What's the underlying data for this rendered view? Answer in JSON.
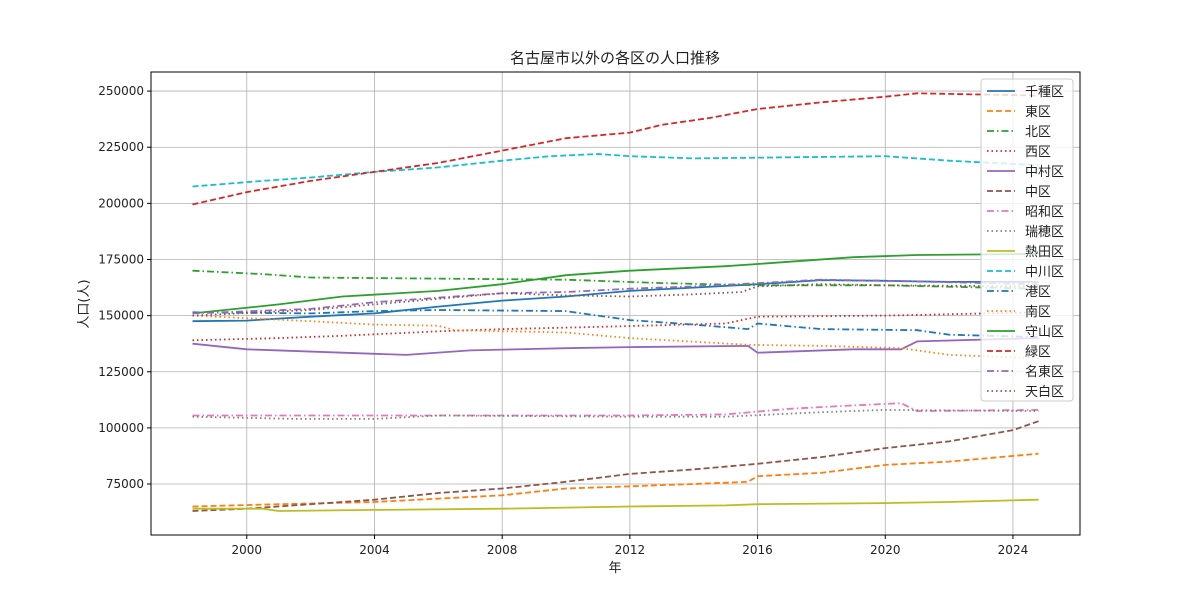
{
  "chart_data": {
    "type": "line",
    "title": "名古屋市以外の各区の人口推移",
    "xlabel": "年",
    "ylabel": "人口(人)",
    "xlim": [
      1997,
      2026.1
    ],
    "ylim": [
      52300,
      258500
    ],
    "xticks": [
      2000,
      2004,
      2008,
      2012,
      2016,
      2020,
      2024
    ],
    "yticks": [
      75000,
      100000,
      125000,
      150000,
      175000,
      200000,
      225000,
      250000
    ],
    "grid": true,
    "legend": "top-right",
    "series": [
      {
        "name": "千種区",
        "color": "#1f77b4",
        "dash": "solid",
        "points": [
          [
            1998.3,
            147500
          ],
          [
            2000,
            147800
          ],
          [
            2002,
            149500
          ],
          [
            2004,
            151000
          ],
          [
            2006,
            154000
          ],
          [
            2008,
            156700
          ],
          [
            2010,
            158500
          ],
          [
            2012,
            161000
          ],
          [
            2014,
            162500
          ],
          [
            2016,
            164000
          ],
          [
            2018,
            165800
          ],
          [
            2020,
            165500
          ],
          [
            2022,
            165000
          ],
          [
            2024.8,
            165000
          ]
        ]
      },
      {
        "name": "東区",
        "color": "#ff7f0e",
        "dash": "dashed",
        "points": [
          [
            1998.3,
            65000
          ],
          [
            2001,
            66000
          ],
          [
            2004,
            67000
          ],
          [
            2008,
            70000
          ],
          [
            2010,
            73000
          ],
          [
            2012,
            74000
          ],
          [
            2014,
            75000
          ],
          [
            2015.7,
            76000
          ],
          [
            2016,
            78500
          ],
          [
            2018,
            80000
          ],
          [
            2020,
            83500
          ],
          [
            2022,
            85000
          ],
          [
            2024.8,
            88500
          ]
        ]
      },
      {
        "name": "北区",
        "color": "#2ca02c",
        "dash": "dashdot",
        "points": [
          [
            1998.3,
            170000
          ],
          [
            2000.5,
            168500
          ],
          [
            2002,
            167000
          ],
          [
            2006,
            166500
          ],
          [
            2010,
            166000
          ],
          [
            2013,
            164500
          ],
          [
            2016,
            163500
          ],
          [
            2020,
            163500
          ],
          [
            2024.8,
            162000
          ]
        ]
      },
      {
        "name": "西区",
        "color": "#d62728",
        "dash": "dotted",
        "points": [
          [
            1998.3,
            139000
          ],
          [
            2001,
            140000
          ],
          [
            2003,
            141000
          ],
          [
            2006,
            143000
          ],
          [
            2008,
            144000
          ],
          [
            2011,
            145000
          ],
          [
            2015,
            146500
          ],
          [
            2016,
            149500
          ],
          [
            2020,
            150000
          ],
          [
            2024.8,
            151500
          ]
        ]
      },
      {
        "name": "中村区",
        "color": "#9467bd",
        "dash": "solid",
        "points": [
          [
            1998.3,
            137500
          ],
          [
            2000,
            135000
          ],
          [
            2003,
            133500
          ],
          [
            2005,
            132500
          ],
          [
            2007,
            134500
          ],
          [
            2010,
            135500
          ],
          [
            2012,
            136000
          ],
          [
            2015.7,
            136500
          ],
          [
            2016,
            133500
          ],
          [
            2019,
            135000
          ],
          [
            2020.5,
            135000
          ],
          [
            2021,
            138500
          ],
          [
            2024.8,
            140000
          ]
        ]
      },
      {
        "name": "中区",
        "color": "#8c564b",
        "dash": "dashed",
        "points": [
          [
            1998.3,
            63000
          ],
          [
            2000,
            64000
          ],
          [
            2002,
            66000
          ],
          [
            2004,
            68000
          ],
          [
            2006,
            71000
          ],
          [
            2008,
            73000
          ],
          [
            2010,
            76000
          ],
          [
            2012,
            79500
          ],
          [
            2014,
            81500
          ],
          [
            2016,
            84000
          ],
          [
            2018,
            87000
          ],
          [
            2020,
            91000
          ],
          [
            2022,
            94000
          ],
          [
            2024,
            99000
          ],
          [
            2024.8,
            103000
          ]
        ]
      },
      {
        "name": "昭和区",
        "color": "#e377c2",
        "dash": "dashdot",
        "points": [
          [
            1998.3,
            105500
          ],
          [
            2004,
            105500
          ],
          [
            2012,
            105500
          ],
          [
            2015,
            106000
          ],
          [
            2017,
            108500
          ],
          [
            2019,
            110000
          ],
          [
            2020.5,
            111000
          ],
          [
            2021,
            107500
          ],
          [
            2024.8,
            108000
          ]
        ]
      },
      {
        "name": "瑞穂区",
        "color": "#7f7f7f",
        "dash": "dotted",
        "points": [
          [
            1998.3,
            105000
          ],
          [
            2001.5,
            104000
          ],
          [
            2004,
            104000
          ],
          [
            2006,
            105500
          ],
          [
            2012,
            105000
          ],
          [
            2015,
            105000
          ],
          [
            2018,
            107000
          ],
          [
            2020,
            108000
          ],
          [
            2024.8,
            107500
          ]
        ]
      },
      {
        "name": "熱田区",
        "color": "#bcbd22",
        "dash": "solid",
        "points": [
          [
            1998.3,
            64000
          ],
          [
            2000.5,
            64000
          ],
          [
            2001,
            63000
          ],
          [
            2004,
            63500
          ],
          [
            2008,
            64000
          ],
          [
            2010,
            64500
          ],
          [
            2012,
            65000
          ],
          [
            2015,
            65500
          ],
          [
            2016,
            66000
          ],
          [
            2020,
            66500
          ],
          [
            2022,
            67000
          ],
          [
            2024.8,
            68000
          ]
        ]
      },
      {
        "name": "中川区",
        "color": "#17becf",
        "dash": "dashed",
        "points": [
          [
            1998.3,
            207500
          ],
          [
            2000.5,
            210000
          ],
          [
            2002,
            211500
          ],
          [
            2004,
            214000
          ],
          [
            2006,
            216000
          ],
          [
            2008,
            219000
          ],
          [
            2009.5,
            221000
          ],
          [
            2011,
            222000
          ],
          [
            2012,
            221000
          ],
          [
            2014,
            220000
          ],
          [
            2017,
            220500
          ],
          [
            2020,
            221000
          ],
          [
            2022,
            219000
          ],
          [
            2024.8,
            217000
          ]
        ]
      },
      {
        "name": "港区",
        "color": "#1f77b4",
        "dash": "dashdot",
        "points": [
          [
            1998.3,
            151500
          ],
          [
            2002,
            151000
          ],
          [
            2004,
            152000
          ],
          [
            2006,
            152500
          ],
          [
            2010,
            152000
          ],
          [
            2010.5,
            151000
          ],
          [
            2012,
            148000
          ],
          [
            2014,
            146000
          ],
          [
            2015.7,
            144000
          ],
          [
            2016,
            146500
          ],
          [
            2018,
            144000
          ],
          [
            2021,
            143500
          ],
          [
            2022,
            141500
          ],
          [
            2024.8,
            140500
          ]
        ]
      },
      {
        "name": "南区",
        "color": "#ff7f0e",
        "dash": "dotted",
        "points": [
          [
            1998.3,
            150000
          ],
          [
            2002,
            147500
          ],
          [
            2004,
            146000
          ],
          [
            2006,
            145500
          ],
          [
            2006.5,
            143500
          ],
          [
            2010,
            142500
          ],
          [
            2012,
            140000
          ],
          [
            2015.7,
            137000
          ],
          [
            2018,
            136500
          ],
          [
            2020.5,
            135500
          ],
          [
            2022,
            132500
          ],
          [
            2024.8,
            131000
          ]
        ]
      },
      {
        "name": "守山区",
        "color": "#2ca02c",
        "dash": "solid",
        "points": [
          [
            1998.3,
            151000
          ],
          [
            2001,
            155000
          ],
          [
            2003,
            158500
          ],
          [
            2006,
            161000
          ],
          [
            2008,
            164000
          ],
          [
            2010,
            168000
          ],
          [
            2012,
            170000
          ],
          [
            2015,
            172000
          ],
          [
            2016,
            173000
          ],
          [
            2019,
            176000
          ],
          [
            2021,
            177000
          ],
          [
            2024.8,
            177500
          ]
        ]
      },
      {
        "name": "緑区",
        "color": "#d62728",
        "dash": "dashed",
        "points": [
          [
            1998.3,
            199500
          ],
          [
            2000,
            205000
          ],
          [
            2002,
            210000
          ],
          [
            2004,
            214000
          ],
          [
            2006,
            218000
          ],
          [
            2008,
            223500
          ],
          [
            2010,
            229000
          ],
          [
            2012,
            231500
          ],
          [
            2013,
            235000
          ],
          [
            2014.5,
            238000
          ],
          [
            2016,
            242000
          ],
          [
            2018,
            245000
          ],
          [
            2020,
            247500
          ],
          [
            2021,
            249000
          ],
          [
            2024.8,
            248000
          ]
        ]
      },
      {
        "name": "名東区",
        "color": "#9467bd",
        "dash": "dashdot",
        "points": [
          [
            1998.3,
            151000
          ],
          [
            2002,
            153000
          ],
          [
            2004,
            156000
          ],
          [
            2006,
            158000
          ],
          [
            2008,
            160000
          ],
          [
            2010,
            160500
          ],
          [
            2012,
            162000
          ],
          [
            2014,
            163000
          ],
          [
            2016,
            164500
          ],
          [
            2018,
            166000
          ],
          [
            2020,
            165500
          ],
          [
            2024.8,
            164000
          ]
        ]
      },
      {
        "name": "天白区",
        "color": "#8c564b",
        "dash": "dotted",
        "points": [
          [
            1998.3,
            150000
          ],
          [
            2002,
            152500
          ],
          [
            2004,
            155000
          ],
          [
            2006,
            157500
          ],
          [
            2008,
            160000
          ],
          [
            2010,
            159000
          ],
          [
            2012,
            158500
          ],
          [
            2014,
            159500
          ],
          [
            2015.5,
            160500
          ],
          [
            2016,
            163000
          ],
          [
            2018,
            164000
          ],
          [
            2020,
            163500
          ],
          [
            2024.8,
            163000
          ]
        ]
      }
    ]
  }
}
